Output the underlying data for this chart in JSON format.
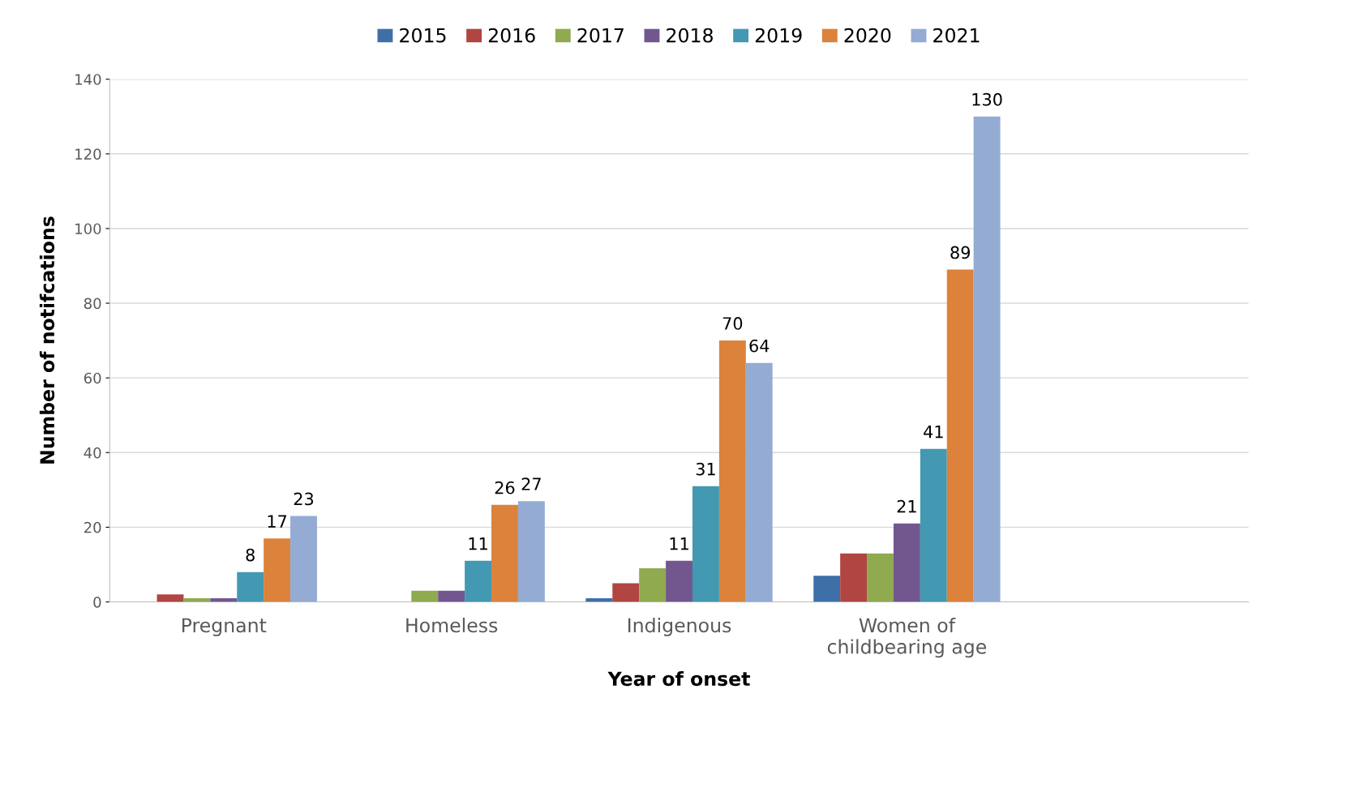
{
  "chart_data": {
    "type": "bar",
    "xlabel": "Year of onset",
    "ylabel": "Number of notifcations",
    "categories": [
      "Pregnant",
      "Homeless",
      "Indigenous",
      "Women of\nchildbearing age",
      null
    ],
    "series": [
      {
        "name": "2015",
        "color": "#3f6fa8",
        "values": [
          0,
          0,
          1,
          7,
          null
        ],
        "value_labels": [
          null,
          null,
          null,
          null,
          null
        ]
      },
      {
        "name": "2016",
        "color": "#b04542",
        "values": [
          2,
          0,
          5,
          13,
          null
        ],
        "value_labels": [
          null,
          null,
          null,
          null,
          null
        ]
      },
      {
        "name": "2017",
        "color": "#8faa4f",
        "values": [
          1,
          3,
          9,
          13,
          null
        ],
        "value_labels": [
          null,
          null,
          null,
          null,
          null
        ]
      },
      {
        "name": "2018",
        "color": "#72578f",
        "values": [
          1,
          3,
          11,
          21,
          null
        ],
        "value_labels": [
          null,
          null,
          "11",
          "21",
          null
        ]
      },
      {
        "name": "2019",
        "color": "#4299b1",
        "values": [
          8,
          11,
          31,
          41,
          null
        ],
        "value_labels": [
          "8",
          "11",
          "31",
          "41",
          null
        ]
      },
      {
        "name": "2020",
        "color": "#dc823a",
        "values": [
          17,
          26,
          70,
          89,
          null
        ],
        "value_labels": [
          "17",
          "26",
          "70",
          "89",
          null
        ]
      },
      {
        "name": "2021",
        "color": "#94abd3",
        "values": [
          23,
          27,
          64,
          130,
          null
        ],
        "value_labels": [
          "23",
          "27",
          "64",
          "130",
          null
        ]
      }
    ],
    "ylim": [
      0,
      140
    ],
    "yticks": [
      0,
      20,
      40,
      60,
      80,
      100,
      120,
      140
    ],
    "grid": "y",
    "legend": "top"
  }
}
